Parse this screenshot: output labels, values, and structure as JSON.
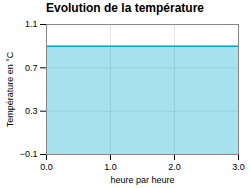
{
  "chart_data": {
    "type": "area",
    "title": "Evolution de la température",
    "xlabel": "heure par heure",
    "ylabel": "Température en °C",
    "x": [
      0,
      3
    ],
    "values": [
      0.9,
      0.9
    ],
    "color": "#00aacc",
    "xlim": [
      0,
      3
    ],
    "ylim": [
      -0.1,
      1.1
    ],
    "xticks": [
      0,
      1,
      2,
      3
    ],
    "yticks": [
      -0.1,
      0.3,
      0.7,
      1.1
    ],
    "grid": true
  }
}
